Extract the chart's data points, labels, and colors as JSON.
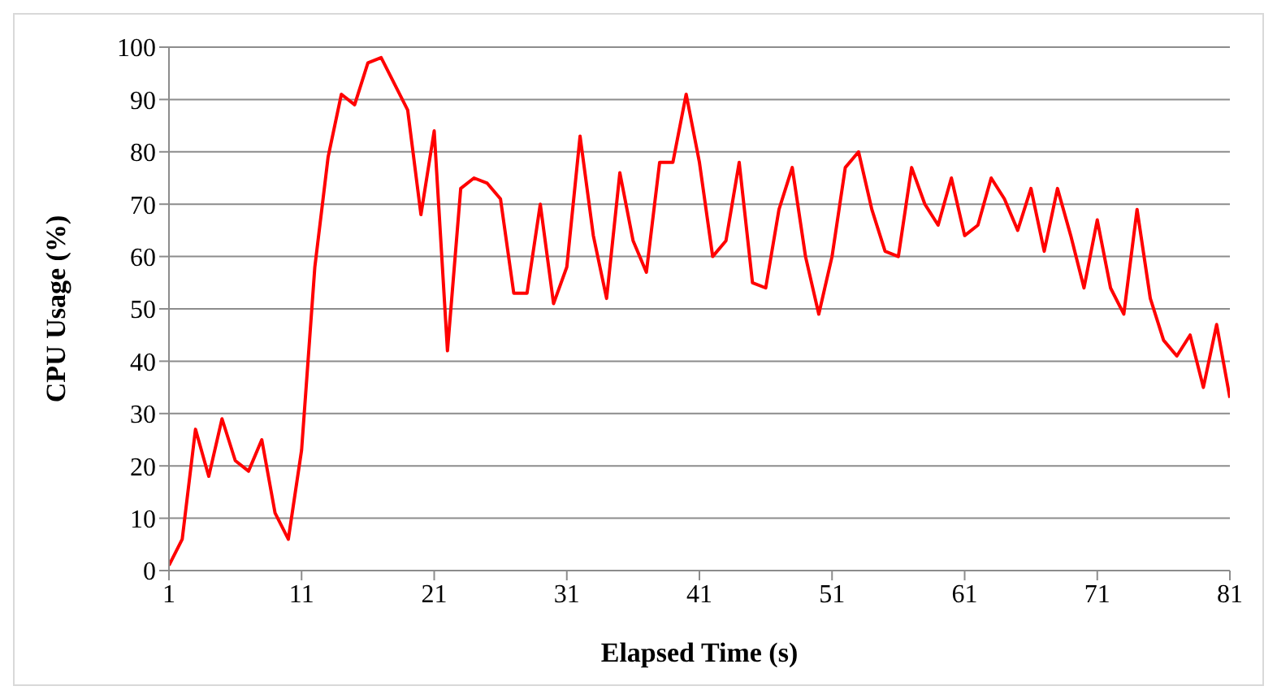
{
  "chart_data": {
    "type": "line",
    "xlabel": "Elapsed Time (s)",
    "ylabel": "CPU Usage (%)",
    "x": [
      1,
      2,
      3,
      4,
      5,
      6,
      7,
      8,
      9,
      10,
      11,
      12,
      13,
      14,
      15,
      16,
      17,
      18,
      19,
      20,
      21,
      22,
      23,
      24,
      25,
      26,
      27,
      28,
      29,
      30,
      31,
      32,
      33,
      34,
      35,
      36,
      37,
      38,
      39,
      40,
      41,
      42,
      43,
      44,
      45,
      46,
      47,
      48,
      49,
      50,
      51,
      52,
      53,
      54,
      55,
      56,
      57,
      58,
      59,
      60,
      61,
      62,
      63,
      64,
      65,
      66,
      67,
      68,
      69,
      70,
      71,
      72,
      73,
      74,
      75,
      76,
      77,
      78,
      79,
      80,
      81
    ],
    "series": [
      {
        "color": "#ff0000",
        "values": [
          1,
          6,
          27,
          18,
          29,
          21,
          19,
          25,
          11,
          6,
          23,
          58,
          79,
          91,
          89,
          97,
          98,
          93,
          88,
          68,
          84,
          42,
          73,
          75,
          74,
          71,
          53,
          53,
          70,
          51,
          58,
          83,
          64,
          52,
          76,
          63,
          57,
          78,
          78,
          91,
          78,
          60,
          63,
          78,
          55,
          54,
          69,
          77,
          60,
          49,
          60,
          77,
          80,
          69,
          61,
          60,
          77,
          70,
          66,
          75,
          64,
          66,
          75,
          71,
          65,
          73,
          61,
          73,
          64,
          54,
          67,
          54,
          49,
          69,
          52,
          44,
          41,
          45,
          35,
          47,
          33
        ]
      }
    ],
    "xlim": [
      1,
      81
    ],
    "xticks": [
      1,
      11,
      21,
      31,
      41,
      51,
      61,
      71,
      81
    ],
    "ylim": [
      0,
      100
    ],
    "yticks": [
      0,
      10,
      20,
      30,
      40,
      50,
      60,
      70,
      80,
      90,
      100
    ],
    "grid": "y",
    "marker": "none",
    "line_style": "solid",
    "legend": false
  }
}
